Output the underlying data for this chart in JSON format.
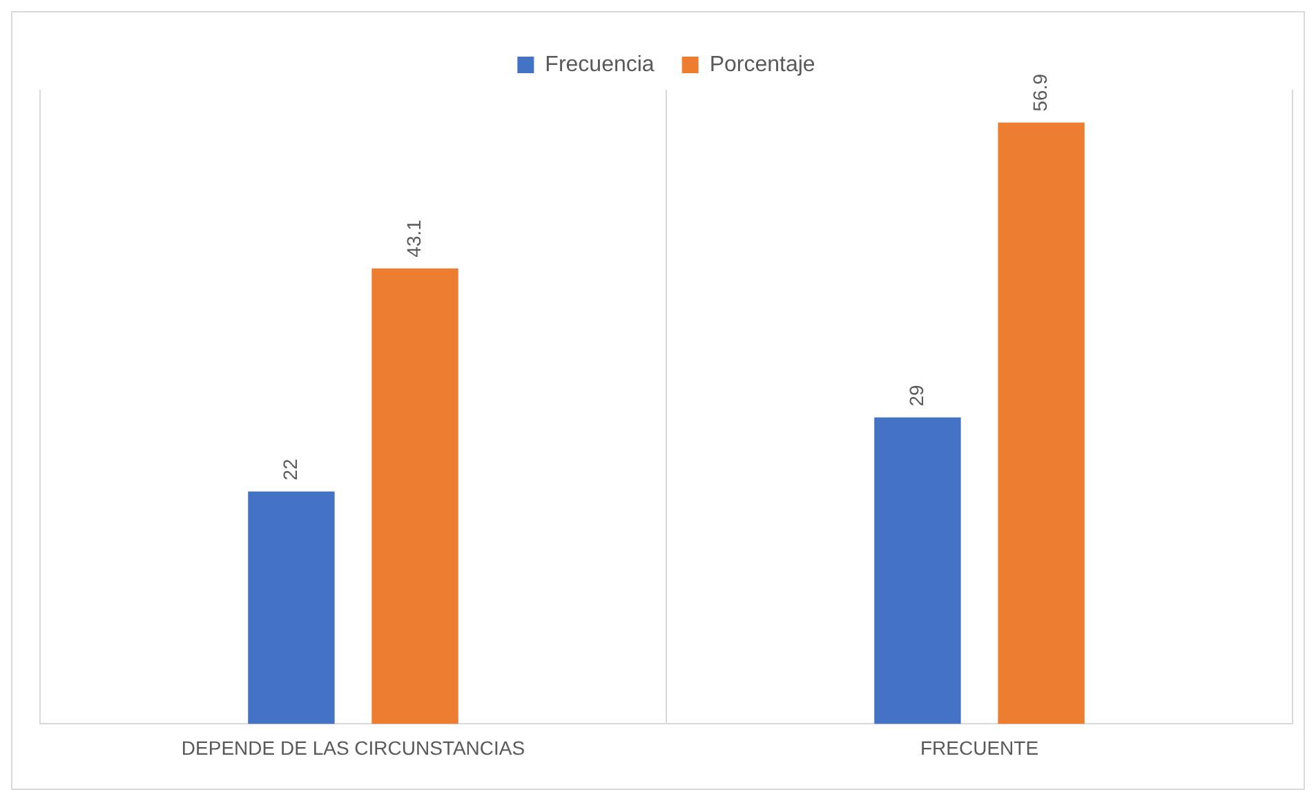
{
  "chart_data": {
    "type": "bar",
    "categories": [
      "DEPENDE DE LAS CIRCUNSTANCIAS",
      "FRECUENTE"
    ],
    "series": [
      {
        "name": "Frecuencia",
        "color": "#4472c4",
        "values": [
          22,
          29
        ]
      },
      {
        "name": "Porcentaje",
        "color": "#ed7d31",
        "values": [
          43.1,
          56.9
        ]
      }
    ],
    "ylim": [
      0,
      60
    ],
    "data_labels": true,
    "grid": "x",
    "legend": "top"
  }
}
